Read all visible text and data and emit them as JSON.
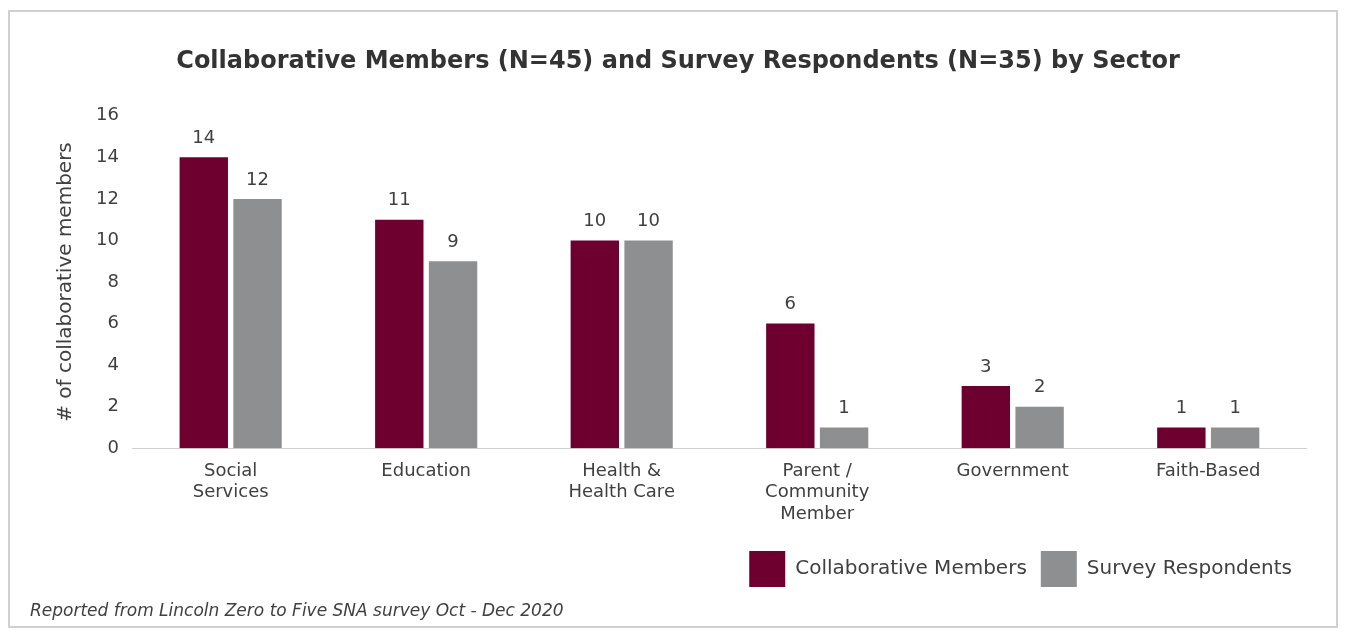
{
  "chart_data": {
    "type": "bar",
    "title": "Collaborative Members (N=45) and Survey Respondents (N=35) by Sector",
    "ylabel": "# of collaborative members",
    "categories": [
      "Social Services",
      "Education",
      "Health & Health Care",
      "Parent / Community Member",
      "Government",
      "Faith-Based"
    ],
    "series": [
      {
        "name": "Collaborative Members",
        "color": "#6e0030",
        "values": [
          14,
          11,
          10,
          6,
          3,
          1
        ]
      },
      {
        "name": "Survey Respondents",
        "color": "#8e8f91",
        "values": [
          12,
          9,
          10,
          1,
          2,
          1
        ]
      }
    ],
    "ylim": [
      0,
      16
    ],
    "yticks": [
      0,
      2,
      4,
      6,
      8,
      10,
      12,
      14,
      16
    ],
    "grid": false,
    "legend": "bottom right",
    "data_labels": true,
    "annotations": [
      "Reported from Lincoln Zero to Five SNA survey Oct - Dec 2020"
    ]
  }
}
